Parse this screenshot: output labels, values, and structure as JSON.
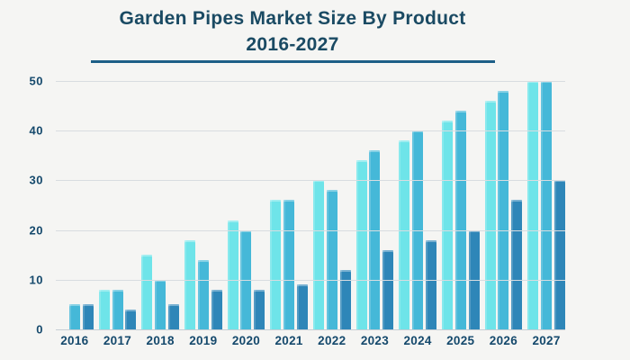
{
  "title": {
    "line1": "Garden Pipes Market Size By Product",
    "line2": "2016-2027"
  },
  "colors": {
    "background": "#f5f5f3",
    "title_text": "#1a4a63",
    "axis_text": "#15496c",
    "title_underline": "#1d5f87",
    "gridline": "#d8dce0",
    "baseline": "#c6ced4"
  },
  "chart_data": {
    "type": "bar",
    "title": "Garden Pipes Market Size By Product 2016-2027",
    "xlabel": "",
    "ylabel": "",
    "categories": [
      "2016",
      "2017",
      "2018",
      "2019",
      "2020",
      "2021",
      "2022",
      "2023",
      "2024",
      "2025",
      "2026",
      "2027"
    ],
    "series": [
      {
        "name": "light-cyan-series",
        "color": "#6ee4e9",
        "values": [
          0,
          8,
          15,
          18,
          22,
          26,
          30,
          34,
          38,
          42,
          46,
          50
        ]
      },
      {
        "name": "medium-teal-series",
        "color": "#45b8d8",
        "values": [
          5,
          8,
          10,
          14,
          20,
          26,
          28,
          36,
          40,
          44,
          48,
          50
        ]
      },
      {
        "name": "dark-blue-series",
        "color": "#2e86b8",
        "values": [
          5,
          4,
          5,
          8,
          8,
          9,
          12,
          16,
          18,
          20,
          26,
          30
        ]
      }
    ],
    "ylim": [
      0,
      50
    ],
    "yticks": [
      0,
      10,
      20,
      30,
      40,
      50
    ],
    "grid": true,
    "legend_position": "none"
  }
}
